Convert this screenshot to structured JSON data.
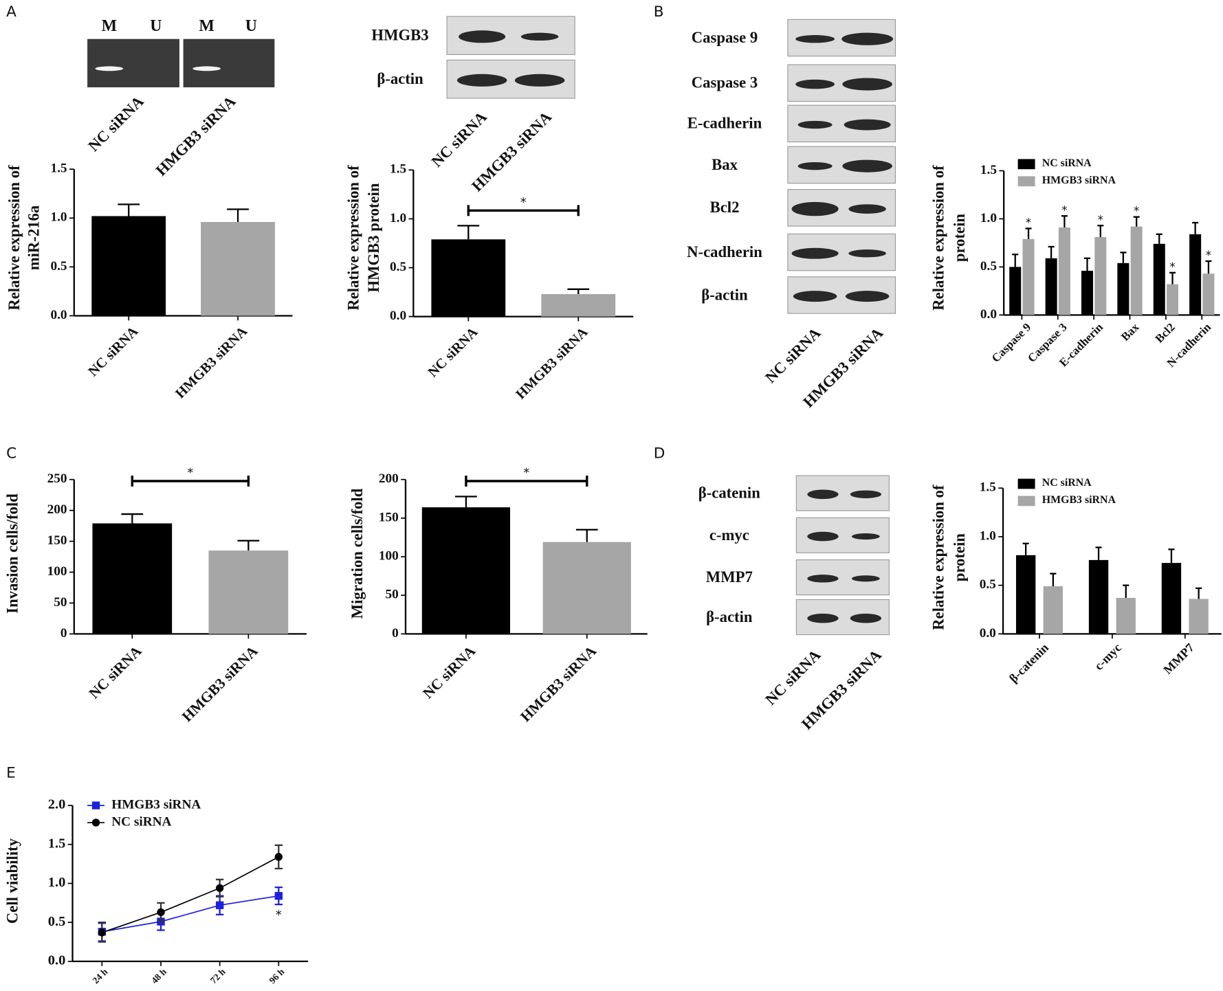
{
  "panel_labels": [
    "A",
    "B",
    "C",
    "D",
    "E"
  ],
  "gel": {
    "lanes": [
      "M",
      "U",
      "M",
      "U"
    ],
    "samples": [
      "NC siRNA",
      "HMGB3 siRNA"
    ]
  },
  "blots": [
    {
      "rows": [
        "HMGB3",
        "β-actin"
      ],
      "lanes": [
        "NC siRNA",
        "HMGB3 siRNA"
      ]
    },
    {
      "rows": [
        "Caspase 9",
        "Caspase 3",
        "E-cadherin",
        "Bax",
        "Bcl2",
        "N-cadherin",
        "β-actin"
      ],
      "lanes": [
        "NC siRNA",
        "HMGB3 siRNA"
      ]
    },
    {
      "rows": [
        "β-catenin",
        "c-myc",
        "MMP7",
        "β-actin"
      ],
      "lanes": [
        "NC siRNA",
        "HMGB3 siRNA"
      ]
    }
  ],
  "chart_data": [
    {
      "type": "bar",
      "ylabel": [
        "Relative expression of",
        "miR-216a"
      ],
      "categories": [
        "NC siRNA",
        "HMGB3 siRNA"
      ],
      "values": [
        1.02,
        0.96
      ],
      "errors": [
        0.12,
        0.13
      ],
      "colors": [
        "#000000",
        "#a6a6a6"
      ],
      "ylim": [
        0,
        1.5
      ],
      "yticks": [
        {
          "value": 0,
          "label": "0.0"
        },
        {
          "value": 0.5,
          "label": "0.5"
        },
        {
          "value": 1,
          "label": "1.0"
        },
        {
          "value": 1.5,
          "label": "1.5"
        }
      ]
    },
    {
      "type": "bar",
      "ylabel": [
        "Relative expression of",
        "HMGB3 protein"
      ],
      "categories": [
        "NC siRNA",
        "HMGB3 siRNA"
      ],
      "values": [
        0.79,
        0.23
      ],
      "errors": [
        0.14,
        0.05
      ],
      "colors": [
        "#000000",
        "#a6a6a6"
      ],
      "significance": "*",
      "ylim": [
        0,
        1.5
      ],
      "yticks": [
        {
          "value": 0,
          "label": "0.0"
        },
        {
          "value": 0.5,
          "label": "0.5"
        },
        {
          "value": 1,
          "label": "1.0"
        },
        {
          "value": 1.5,
          "label": "1.5"
        }
      ]
    },
    {
      "type": "grouped_bar",
      "ylabel": [
        "Relative expression of",
        "protein"
      ],
      "categories": [
        "Caspase 9",
        "Caspase 3",
        "E-cadherin",
        "Bax",
        "Bcl2",
        "N-cadherin"
      ],
      "series": [
        {
          "name": "NC siRNA",
          "color": "#000000",
          "values": [
            0.5,
            0.59,
            0.46,
            0.54,
            0.74,
            0.84
          ],
          "errors": [
            0.13,
            0.12,
            0.13,
            0.11,
            0.1,
            0.12
          ]
        },
        {
          "name": "HMGB3 siRNA",
          "color": "#a6a6a6",
          "values": [
            0.79,
            0.91,
            0.81,
            0.92,
            0.32,
            0.43
          ],
          "errors": [
            0.11,
            0.12,
            0.12,
            0.1,
            0.12,
            0.13
          ],
          "annotations": [
            "*",
            "*",
            "*",
            "*",
            "*",
            "*"
          ]
        }
      ],
      "ylim": [
        0,
        1.5
      ],
      "yticks": [
        {
          "value": 0,
          "label": "0.0"
        },
        {
          "value": 0.5,
          "label": "0.5"
        },
        {
          "value": 1,
          "label": "1.0"
        },
        {
          "value": 1.5,
          "label": "1.5"
        }
      ]
    },
    {
      "type": "bar",
      "ylabel": [
        "Invasion cells/fold"
      ],
      "categories": [
        "NC siRNA",
        "HMGB3 siRNA"
      ],
      "values": [
        179,
        135
      ],
      "errors": [
        15,
        16
      ],
      "colors": [
        "#000000",
        "#a6a6a6"
      ],
      "significance": "*",
      "ylim": [
        0,
        250
      ],
      "yticks": [
        0,
        50,
        100,
        150,
        200,
        250
      ]
    },
    {
      "type": "bar",
      "ylabel": [
        "Migration cells/fold"
      ],
      "categories": [
        "NC siRNA",
        "HMGB3 siRNA"
      ],
      "values": [
        164,
        119
      ],
      "errors": [
        14,
        16
      ],
      "colors": [
        "#000000",
        "#a6a6a6"
      ],
      "significance": "*",
      "ylim": [
        0,
        200
      ],
      "yticks": [
        0,
        50,
        100,
        150,
        200
      ]
    },
    {
      "type": "grouped_bar",
      "ylabel": [
        "Relative expression of",
        "protein"
      ],
      "categories": [
        "β-catenin",
        "c-myc",
        "MMP7"
      ],
      "series": [
        {
          "name": "NC siRNA",
          "color": "#000000",
          "values": [
            0.81,
            0.76,
            0.73
          ],
          "errors": [
            0.12,
            0.13,
            0.14
          ]
        },
        {
          "name": "HMGB3 siRNA",
          "color": "#a6a6a6",
          "values": [
            0.49,
            0.37,
            0.36
          ],
          "errors": [
            0.13,
            0.13,
            0.11
          ]
        }
      ],
      "ylim": [
        0,
        1.5
      ],
      "yticks": [
        {
          "value": 0,
          "label": "0.0"
        },
        {
          "value": 0.5,
          "label": "0.5"
        },
        {
          "value": 1,
          "label": "1.0"
        },
        {
          "value": 1.5,
          "label": "1.5"
        }
      ]
    },
    {
      "type": "line",
      "ylabel": [
        "Cell viability"
      ],
      "categories": [
        "24 h",
        "48 h",
        "72 h",
        "96 h"
      ],
      "series": [
        {
          "name": "HMGB3 siRNA",
          "color": "#1f1fe0",
          "marker": "square",
          "values": [
            0.38,
            0.51,
            0.72,
            0.84
          ],
          "errors": [
            0.12,
            0.11,
            0.12,
            0.11
          ]
        },
        {
          "name": "NC siRNA",
          "color": "#000000",
          "marker": "circle",
          "values": [
            0.37,
            0.63,
            0.94,
            1.34
          ],
          "errors": [
            0.12,
            0.12,
            0.11,
            0.15
          ]
        }
      ],
      "significance": "*",
      "ylim": [
        0,
        2
      ],
      "yticks": [
        {
          "value": 0,
          "label": "0.0"
        },
        {
          "value": 0.5,
          "label": "0.5"
        },
        {
          "value": 1,
          "label": "1.0"
        },
        {
          "value": 1.5,
          "label": "1.5"
        },
        {
          "value": 2,
          "label": "2.0"
        }
      ]
    }
  ]
}
